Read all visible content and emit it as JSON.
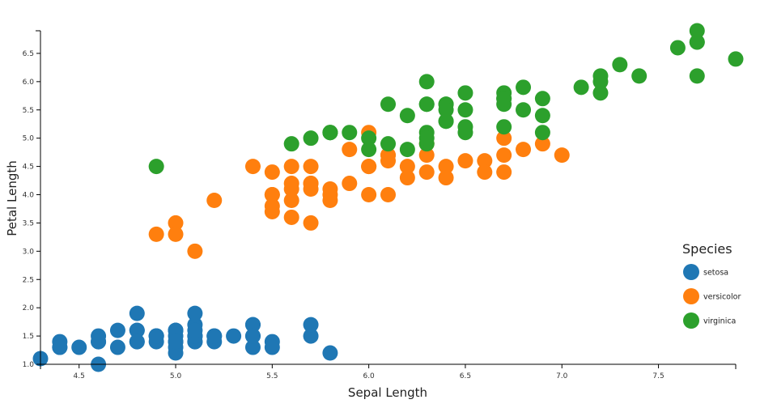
{
  "chart_data": {
    "type": "scatter",
    "xlabel": "Sepal Length",
    "ylabel": "Petal Length",
    "xlim": [
      4.3,
      7.9
    ],
    "ylim": [
      1.0,
      6.9
    ],
    "xticks": [
      4.5,
      5.0,
      5.5,
      6.0,
      6.5,
      7.0,
      7.5
    ],
    "yticks": [
      1.0,
      1.5,
      2.0,
      2.5,
      3.0,
      3.5,
      4.0,
      4.5,
      5.0,
      5.5,
      6.0,
      6.5
    ],
    "grid": false,
    "legend": {
      "title": "Species",
      "placement": "right"
    },
    "series": [
      {
        "name": "setosa",
        "color": "#1f77b4",
        "x": [
          5.1,
          4.9,
          4.7,
          4.6,
          5.0,
          5.4,
          4.6,
          5.0,
          4.4,
          4.9,
          5.4,
          4.8,
          4.8,
          4.3,
          5.8,
          5.7,
          5.4,
          5.1,
          5.7,
          5.1,
          5.4,
          5.1,
          4.6,
          5.1,
          4.8,
          5.0,
          5.0,
          5.2,
          5.2,
          4.7,
          4.8,
          5.4,
          5.2,
          5.5,
          4.9,
          5.0,
          5.5,
          4.9,
          4.4,
          5.1,
          5.0,
          4.5,
          4.4,
          5.0,
          5.1,
          4.8,
          5.1,
          4.6,
          5.3,
          5.0
        ],
        "y": [
          1.4,
          1.4,
          1.3,
          1.5,
          1.4,
          1.7,
          1.4,
          1.5,
          1.4,
          1.5,
          1.5,
          1.6,
          1.4,
          1.1,
          1.2,
          1.5,
          1.3,
          1.4,
          1.7,
          1.5,
          1.7,
          1.5,
          1.0,
          1.7,
          1.9,
          1.6,
          1.6,
          1.5,
          1.4,
          1.6,
          1.6,
          1.5,
          1.5,
          1.4,
          1.5,
          1.2,
          1.3,
          1.5,
          1.3,
          1.5,
          1.3,
          1.3,
          1.3,
          1.6,
          1.9,
          1.4,
          1.6,
          1.4,
          1.5,
          1.4
        ]
      },
      {
        "name": "versicolor",
        "color": "#ff7f0e",
        "x": [
          7.0,
          6.4,
          6.9,
          5.5,
          6.5,
          5.7,
          6.3,
          4.9,
          6.6,
          5.2,
          5.0,
          5.9,
          6.0,
          6.1,
          5.6,
          6.7,
          5.6,
          5.8,
          6.2,
          5.6,
          5.9,
          6.1,
          6.3,
          6.1,
          6.4,
          6.6,
          6.8,
          6.7,
          6.0,
          5.7,
          5.5,
          5.5,
          5.8,
          6.0,
          5.4,
          6.0,
          6.7,
          6.3,
          5.6,
          5.5,
          5.5,
          6.1,
          5.8,
          5.0,
          5.6,
          5.7,
          5.7,
          6.2,
          5.1,
          5.7
        ],
        "y": [
          4.7,
          4.5,
          4.9,
          4.0,
          4.6,
          4.5,
          4.7,
          3.3,
          4.6,
          3.9,
          3.5,
          4.2,
          4.0,
          4.7,
          3.6,
          4.4,
          4.5,
          4.1,
          4.5,
          3.9,
          4.8,
          4.0,
          4.9,
          4.7,
          4.3,
          4.4,
          4.8,
          5.0,
          4.5,
          3.5,
          3.8,
          3.7,
          3.9,
          5.1,
          4.5,
          4.5,
          4.7,
          4.4,
          4.1,
          4.0,
          4.4,
          4.6,
          4.0,
          3.3,
          4.2,
          4.2,
          4.2,
          4.3,
          3.0,
          4.1
        ]
      },
      {
        "name": "virginica",
        "color": "#2ca02c",
        "x": [
          6.3,
          5.8,
          7.1,
          6.3,
          6.5,
          7.6,
          4.9,
          7.3,
          6.7,
          7.2,
          6.5,
          6.4,
          6.8,
          5.7,
          5.8,
          6.4,
          6.5,
          7.7,
          7.7,
          6.0,
          6.9,
          5.6,
          7.7,
          6.3,
          6.7,
          7.2,
          6.2,
          6.1,
          6.4,
          7.2,
          7.4,
          7.9,
          6.4,
          6.3,
          6.1,
          7.7,
          6.3,
          6.4,
          6.0,
          6.9,
          6.7,
          6.9,
          5.8,
          6.8,
          6.7,
          6.7,
          6.3,
          6.5,
          6.2,
          5.9
        ],
        "y": [
          6.0,
          5.1,
          5.9,
          5.6,
          5.8,
          6.6,
          4.5,
          6.3,
          5.8,
          6.1,
          5.1,
          5.3,
          5.5,
          5.0,
          5.1,
          5.3,
          5.5,
          6.7,
          6.9,
          5.0,
          5.7,
          4.9,
          6.7,
          4.9,
          5.7,
          6.0,
          4.8,
          4.9,
          5.6,
          5.8,
          6.1,
          6.4,
          5.6,
          5.1,
          5.6,
          6.1,
          5.6,
          5.5,
          4.8,
          5.4,
          5.6,
          5.1,
          5.1,
          5.9,
          5.7,
          5.2,
          5.0,
          5.2,
          5.4,
          5.1
        ]
      }
    ]
  }
}
